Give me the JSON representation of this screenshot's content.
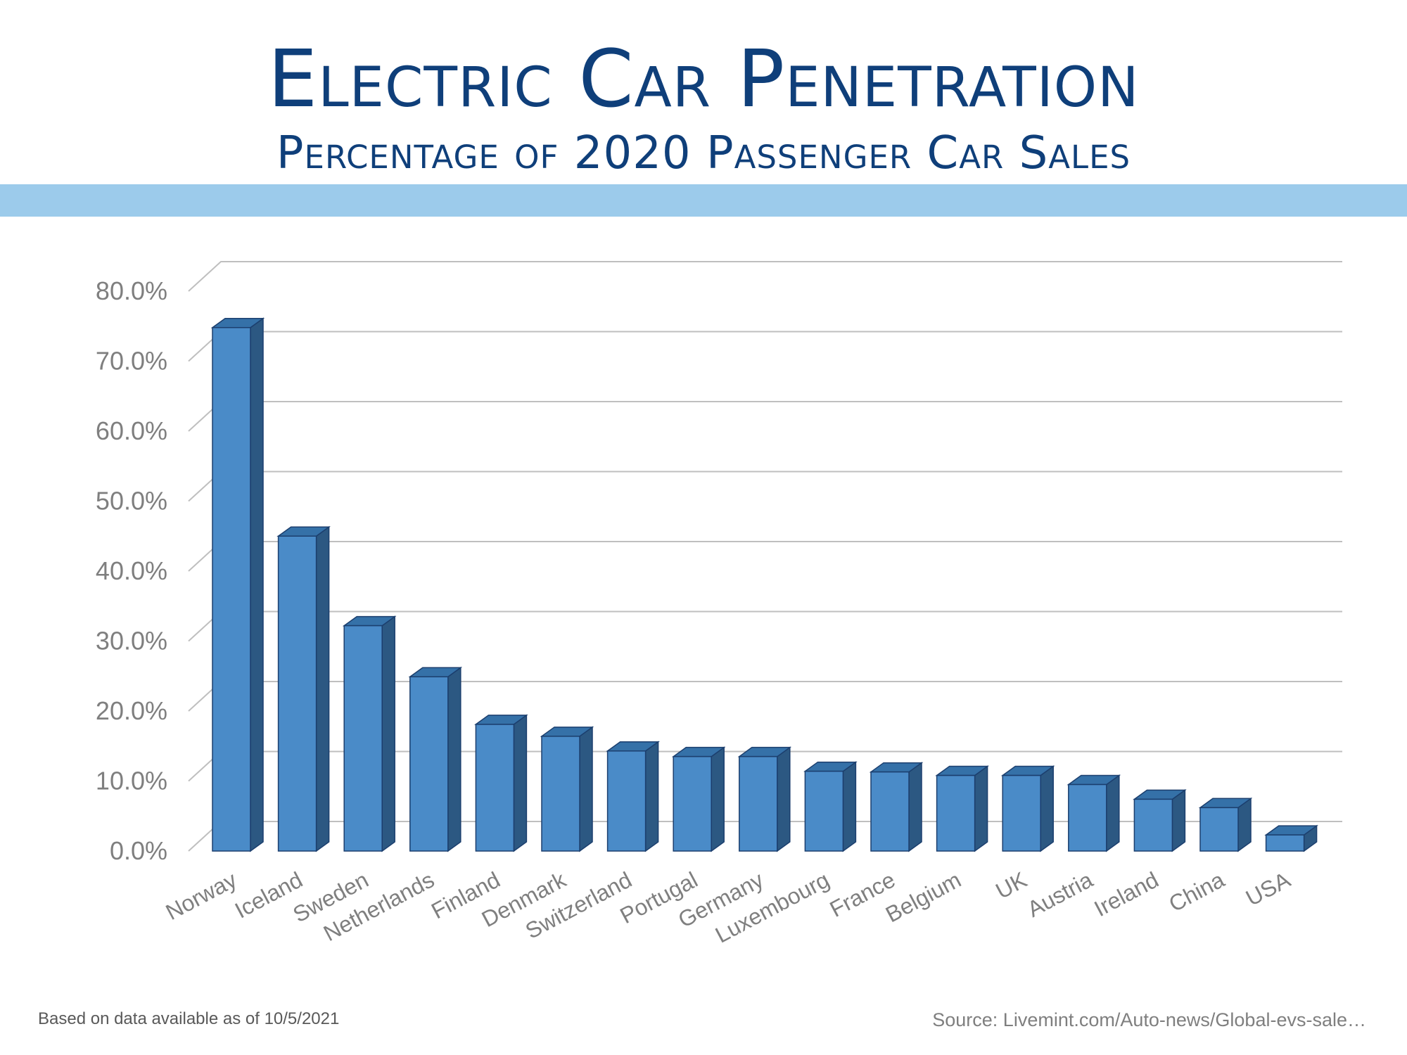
{
  "header": {
    "title": "Electric Car Penetration",
    "subtitle": "Percentage of 2020 Passenger Car Sales"
  },
  "colors": {
    "title": "#0f3f7a",
    "band": "#9ccbeb",
    "bar_front": "#4a8bc8",
    "bar_side": "#2c5882",
    "bar_top": "#3571a8",
    "bar_edge": "#1c3f6e",
    "grid": "#bfbfbf",
    "tick_label": "#7f7f7f"
  },
  "footer": {
    "note": "Based on data available as of 10/5/2021",
    "source": "Source:  Livemint.com/Auto-news/Global-evs-sale…"
  },
  "chart_data": {
    "type": "bar",
    "style": "3d-column",
    "categories": [
      "Norway",
      "Iceland",
      "Sweden",
      "Netherlands",
      "Finland",
      "Denmark",
      "Switzerland",
      "Portugal",
      "Germany",
      "Luxembourg",
      "France",
      "Belgium",
      "UK",
      "Austria",
      "Ireland",
      "China",
      "USA"
    ],
    "values": [
      74.8,
      45.0,
      32.2,
      24.9,
      18.1,
      16.4,
      14.3,
      13.5,
      13.5,
      11.4,
      11.3,
      10.8,
      10.8,
      9.5,
      7.4,
      6.2,
      2.3
    ],
    "ylim": [
      0,
      80
    ],
    "yticks": [
      "0.0%",
      "10.0%",
      "20.0%",
      "30.0%",
      "40.0%",
      "50.0%",
      "60.0%",
      "70.0%",
      "80.0%"
    ],
    "grid": true,
    "legend": "none"
  }
}
